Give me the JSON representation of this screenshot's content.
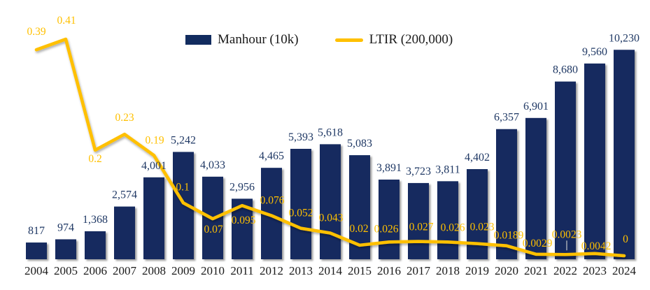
{
  "legend": {
    "items": [
      {
        "label": "Manhour (10k)",
        "swatch": "bar-swatch"
      },
      {
        "label": "LTIR (200,000)",
        "swatch": "line-swatch"
      }
    ]
  },
  "colors": {
    "bar": "#122C5F",
    "bar_label": "#1F3864",
    "line": "#FFC000",
    "line_label": "#FFC000",
    "axis_label": "#1a1a1a",
    "leader": "#C8C8C8",
    "background": "#FFFFFF"
  },
  "chart_data": {
    "type": "combo (bar + line)",
    "title": "",
    "xlabel": "",
    "ylabel": "",
    "categories": [
      "2004",
      "2005",
      "2006",
      "2007",
      "2008",
      "2009",
      "2010",
      "2011",
      "2012",
      "2013",
      "2014",
      "2015",
      "2016",
      "2017",
      "2018",
      "2019",
      "2020",
      "2021",
      "2022",
      "2023",
      "2024"
    ],
    "series": [
      {
        "name": "Manhour (10k)",
        "type": "bar",
        "axis": "left",
        "values": [
          817,
          974,
          1368,
          2574,
          4001,
          5242,
          4033,
          2956,
          4465,
          5393,
          5618,
          5083,
          3891,
          3723,
          3811,
          4402,
          6357,
          6901,
          8680,
          9560,
          10230
        ],
        "labels": [
          "817",
          "974",
          "1,368",
          "2,574",
          "4,001",
          "5,242",
          "4,033",
          "2,956",
          "4,465",
          "5,393",
          "5,618",
          "5,083",
          "3,891",
          "3,723",
          "3,811",
          "4,402",
          "6,357",
          "6,901",
          "8,680",
          "9,560",
          "10,230"
        ]
      },
      {
        "name": "LTIR (200,000)",
        "type": "line",
        "axis": "right",
        "values": [
          0.39,
          0.41,
          0.2,
          0.23,
          0.19,
          0.1,
          0.07,
          0.095,
          0.076,
          0.052,
          0.043,
          0.02,
          0.026,
          0.027,
          0.026,
          0.023,
          0.0189,
          0.0029,
          0.0023,
          0.0042,
          0
        ],
        "labels": [
          "0.39",
          "0.41",
          "0.2",
          "0.23",
          "0.19",
          "0.1",
          "0.07",
          "0.095",
          "0.076",
          "0.052",
          "0.043",
          "0.02",
          "0.026",
          "0.027",
          "0.026",
          "0.023",
          "0.0189",
          "0.0029",
          "0.0023",
          "0.0042",
          "0"
        ]
      }
    ],
    "left_axis": {
      "visible": false,
      "range": [
        0,
        10900
      ]
    },
    "right_axis": {
      "visible": false,
      "range": [
        0,
        0.45
      ]
    },
    "gridlines": false,
    "data_labels": true,
    "legend_position": "top-center"
  }
}
